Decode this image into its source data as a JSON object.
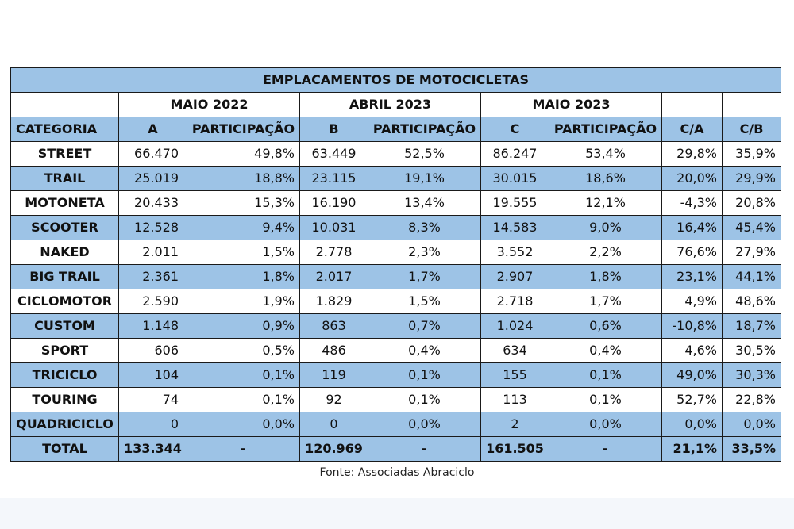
{
  "chart_data": {
    "type": "table",
    "title": "EMPLACAMENTOS DE MOTOCICLETAS",
    "groups": [
      "MAIO 2022",
      "ABRIL 2023",
      "MAIO 2023"
    ],
    "columns": [
      "CATEGORIA",
      "A",
      "PARTICIPAÇÃO",
      "B",
      "PARTICIPAÇÃO",
      "C",
      "PARTICIPAÇÃO",
      "C/A",
      "C/B"
    ],
    "rows": [
      [
        "STREET",
        "66.470",
        "49,8%",
        "63.449",
        "52,5%",
        "86.247",
        "53,4%",
        "29,8%",
        "35,9%"
      ],
      [
        "TRAIL",
        "25.019",
        "18,8%",
        "23.115",
        "19,1%",
        "30.015",
        "18,6%",
        "20,0%",
        "29,9%"
      ],
      [
        "MOTONETA",
        "20.433",
        "15,3%",
        "16.190",
        "13,4%",
        "19.555",
        "12,1%",
        "-4,3%",
        "20,8%"
      ],
      [
        "SCOOTER",
        "12.528",
        "9,4%",
        "10.031",
        "8,3%",
        "14.583",
        "9,0%",
        "16,4%",
        "45,4%"
      ],
      [
        "NAKED",
        "2.011",
        "1,5%",
        "2.778",
        "2,3%",
        "3.552",
        "2,2%",
        "76,6%",
        "27,9%"
      ],
      [
        "BIG TRAIL",
        "2.361",
        "1,8%",
        "2.017",
        "1,7%",
        "2.907",
        "1,8%",
        "23,1%",
        "44,1%"
      ],
      [
        "CICLOMOTOR",
        "2.590",
        "1,9%",
        "1.829",
        "1,5%",
        "2.718",
        "1,7%",
        "4,9%",
        "48,6%"
      ],
      [
        "CUSTOM",
        "1.148",
        "0,9%",
        "863",
        "0,7%",
        "1.024",
        "0,6%",
        "-10,8%",
        "18,7%"
      ],
      [
        "SPORT",
        "606",
        "0,5%",
        "486",
        "0,4%",
        "634",
        "0,4%",
        "4,6%",
        "30,5%"
      ],
      [
        "TRICICLO",
        "104",
        "0,1%",
        "119",
        "0,1%",
        "155",
        "0,1%",
        "49,0%",
        "30,3%"
      ],
      [
        "TOURING",
        "74",
        "0,1%",
        "92",
        "0,1%",
        "113",
        "0,1%",
        "52,7%",
        "22,8%"
      ],
      [
        "QUADRICICLO",
        "0",
        "0,0%",
        "0",
        "0,0%",
        "2",
        "0,0%",
        "0,0%",
        "0,0%"
      ],
      [
        "TOTAL",
        "133.344",
        "-",
        "120.969",
        "-",
        "161.505",
        "-",
        "21,1%",
        "33,5%"
      ]
    ],
    "colors": {
      "header_fill": "#9dc3e6",
      "alt_row_fill": "#9dc3e6",
      "row_fill": "#ffffff",
      "border": "#1a1a1a"
    }
  },
  "source": "Fonte: Associadas Abraciclo"
}
